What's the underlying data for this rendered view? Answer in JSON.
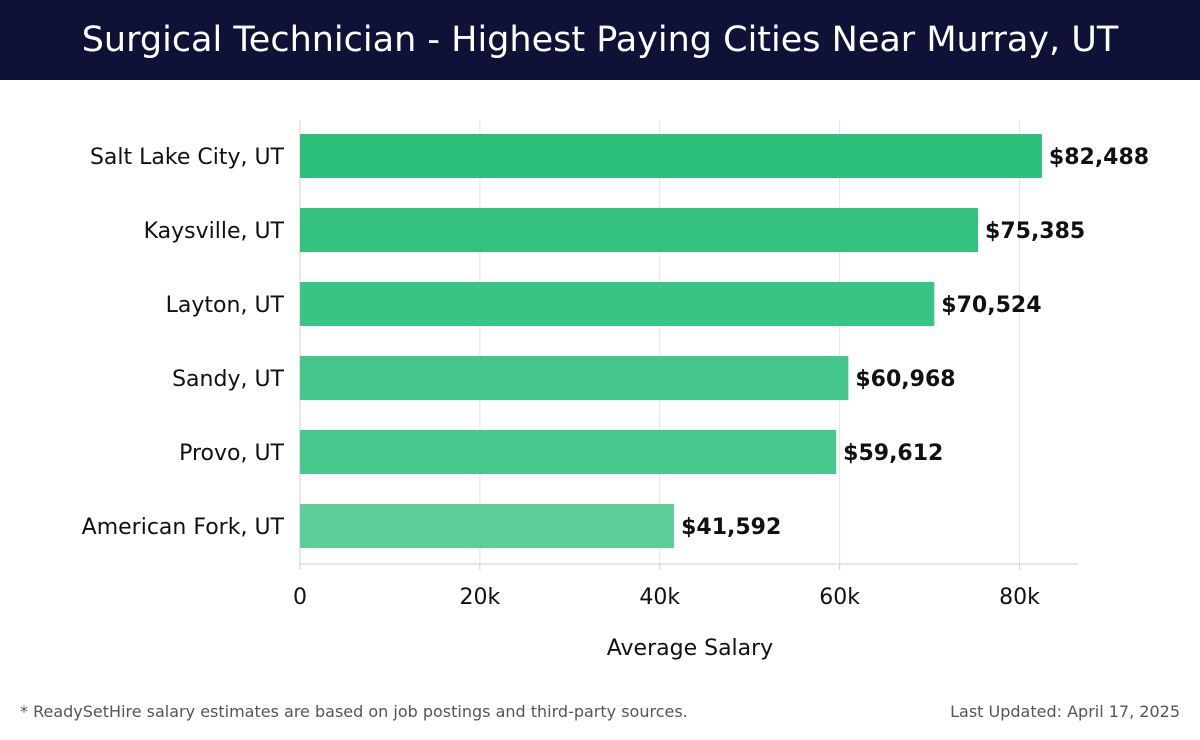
{
  "header": {
    "title": "Surgical Technician - Highest Paying Cities Near Murray, UT"
  },
  "footer": {
    "note": "* ReadySetHire salary estimates are based on job postings and third-party sources.",
    "updated": "Last Updated: April 17, 2025"
  },
  "colors": {
    "title_bg": "#0f1137",
    "bar_colors": [
      "#2cc07a",
      "#33c27e",
      "#38c482",
      "#45c78b",
      "#47c88c",
      "#5ccf98"
    ],
    "grid": "#e3e3e3",
    "axis": "#cccccc"
  },
  "chart_data": {
    "type": "bar",
    "orientation": "horizontal",
    "categories": [
      "Salt Lake City, UT",
      "Kaysville, UT",
      "Layton, UT",
      "Sandy, UT",
      "Provo, UT",
      "American Fork, UT"
    ],
    "values": [
      82488,
      75385,
      70524,
      60968,
      59612,
      41592
    ],
    "value_labels": [
      "$82,488",
      "$75,385",
      "$70,524",
      "$60,968",
      "$59,612",
      "$41,592"
    ],
    "xlabel": "Average Salary",
    "ylabel": "",
    "xlim": [
      0,
      86500
    ],
    "xticks": [
      0,
      20000,
      40000,
      60000,
      80000
    ],
    "xtick_labels": [
      "0",
      "20k",
      "40k",
      "60k",
      "80k"
    ],
    "grid": true
  }
}
